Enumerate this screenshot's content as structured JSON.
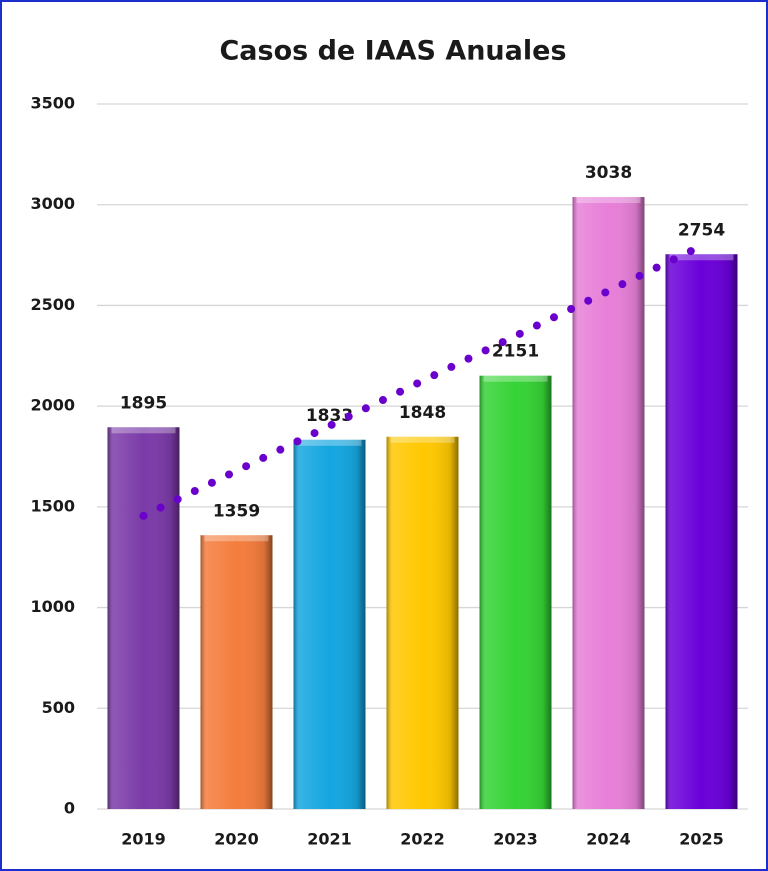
{
  "chart_data": {
    "type": "bar",
    "title": "Casos de IAAS Anuales",
    "categories": [
      "2019",
      "2020",
      "2021",
      "2022",
      "2023",
      "2024",
      "2025"
    ],
    "values": [
      1895,
      1359,
      1833,
      1848,
      2151,
      3038,
      2754
    ],
    "colors": [
      "#7b3aa8",
      "#f47c3c",
      "#14a6e0",
      "#ffc800",
      "#35d335",
      "#e77fd8",
      "#6a00d9"
    ],
    "ylim": [
      0,
      3500
    ],
    "yticks": [
      0,
      500,
      1000,
      1500,
      2000,
      2500,
      3000,
      3500
    ],
    "grid": true,
    "trendline": {
      "kind": "linear",
      "color": "#6a00cc",
      "style": "dotted"
    }
  }
}
